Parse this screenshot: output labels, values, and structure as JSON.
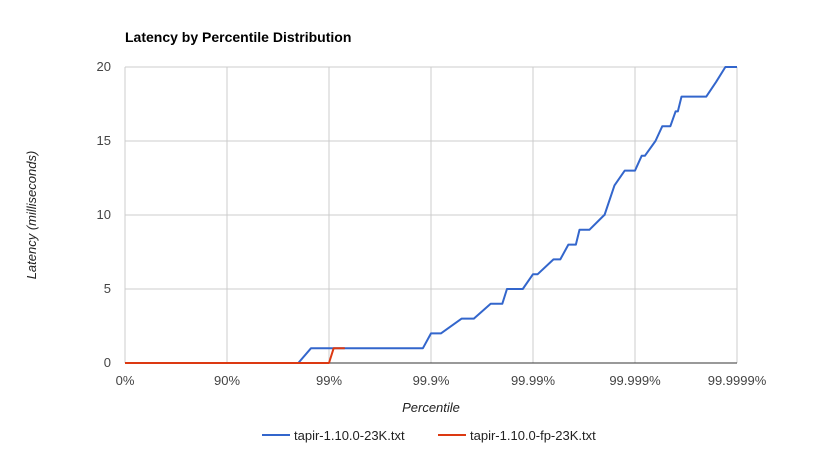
{
  "chart_data": {
    "type": "line",
    "title": "Latency by Percentile Distribution",
    "xlabel": "Percentile",
    "ylabel": "Latency (milliseconds)",
    "x_scale": "log-reciprocal",
    "x_tick_labels": [
      "0%",
      "90%",
      "99%",
      "99.9%",
      "99.99%",
      "99.999%",
      "99.9999%"
    ],
    "y_ticks": [
      0,
      5,
      10,
      15,
      20
    ],
    "ylim": [
      0,
      20
    ],
    "grid": true,
    "legend_position": "bottom",
    "series": [
      {
        "name": "tapir-1.10.0-23K.txt",
        "color": "#3366cc",
        "x": [
          0,
          90,
          98.0,
          98.5,
          99.1,
          99.88,
          99.9,
          99.92,
          99.95,
          99.96,
          99.962,
          99.974,
          99.98,
          99.982,
          99.9874,
          99.99,
          99.991,
          99.9937,
          99.9946,
          99.9955,
          99.9962,
          99.9965,
          99.9972,
          99.998,
          99.99801,
          99.99841,
          99.99841,
          99.99874,
          99.999,
          99.99914,
          99.9992,
          99.99937,
          99.99946,
          99.99955,
          99.9996,
          99.99962,
          99.99965,
          99.99968,
          99.99972,
          99.99975,
          99.9998,
          99.99984,
          99.99987,
          99.9999
        ],
        "values": [
          0,
          0,
          0,
          1,
          1,
          1,
          2,
          2,
          3,
          3,
          3,
          4,
          4,
          5,
          5,
          6,
          6,
          7,
          7,
          8,
          8,
          9,
          9,
          10,
          10,
          12,
          12,
          13,
          13,
          14,
          14,
          15,
          16,
          16,
          17,
          17,
          18,
          18,
          18,
          18,
          18,
          19,
          20,
          20
        ]
      },
      {
        "name": "tapir-1.10.0-fp-23K.txt",
        "color": "#dc3912",
        "x": [
          0,
          90,
          99.0,
          99.1,
          99.3
        ],
        "values": [
          0,
          0,
          0,
          1,
          1
        ]
      }
    ]
  }
}
